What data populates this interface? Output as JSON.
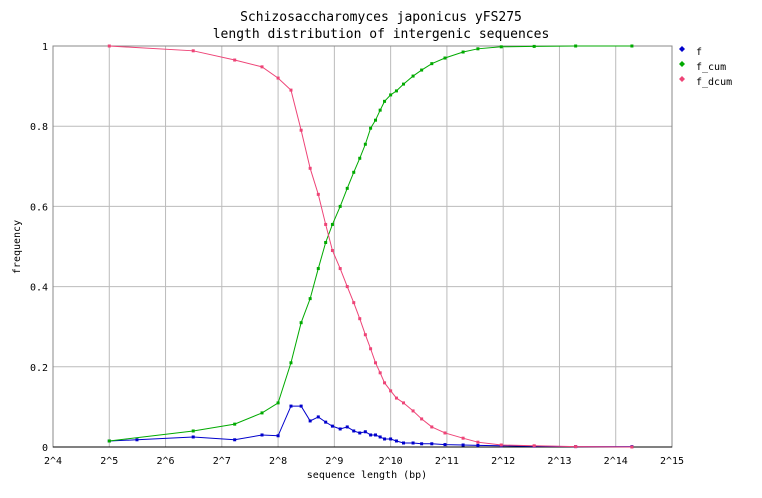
{
  "chart_data": {
    "type": "line",
    "title": "Schizosaccharomyces japonicus yFS275",
    "subtitle": "length distribution of intergenic sequences",
    "xlabel": "sequence length (bp)",
    "ylabel": "frequency",
    "x_scale": "log2",
    "xlim": [
      16,
      32768
    ],
    "ylim": [
      0,
      1
    ],
    "x_ticks": [
      16,
      32,
      64,
      128,
      256,
      512,
      1024,
      2048,
      4096,
      8192,
      16384,
      32768
    ],
    "x_tick_labels": [
      "2^4",
      "2^5",
      "2^6",
      "2^7",
      "2^8",
      "2^9",
      "2^10",
      "2^11",
      "2^12",
      "2^13",
      "2^14",
      "2^15"
    ],
    "y_ticks": [
      0,
      0.2,
      0.4,
      0.6,
      0.8,
      1
    ],
    "y_tick_labels": [
      "0",
      "0.2",
      "0.4",
      "0.6",
      "0.8",
      "1"
    ],
    "grid": true,
    "legend_position": "right",
    "series": [
      {
        "name": "f",
        "color": "#0000cc",
        "x": [
          32,
          45,
          90,
          150,
          210,
          256,
          300,
          340,
          380,
          420,
          460,
          500,
          550,
          600,
          650,
          700,
          750,
          800,
          850,
          900,
          950,
          1024,
          1100,
          1200,
          1350,
          1500,
          1700,
          2000,
          2500,
          3000,
          4000,
          6000,
          10000,
          20000
        ],
        "y": [
          0.015,
          0.018,
          0.025,
          0.018,
          0.03,
          0.028,
          0.102,
          0.102,
          0.065,
          0.075,
          0.062,
          0.052,
          0.045,
          0.05,
          0.04,
          0.035,
          0.038,
          0.03,
          0.03,
          0.025,
          0.02,
          0.02,
          0.015,
          0.01,
          0.01,
          0.008,
          0.008,
          0.006,
          0.005,
          0.004,
          0.003,
          0.002,
          0.001,
          0.001
        ]
      },
      {
        "name": "f_cum",
        "color": "#00aa00",
        "x": [
          32,
          90,
          150,
          210,
          256,
          300,
          340,
          380,
          420,
          460,
          500,
          550,
          600,
          650,
          700,
          750,
          800,
          850,
          900,
          950,
          1024,
          1100,
          1200,
          1350,
          1500,
          1700,
          2000,
          2500,
          3000,
          4000,
          6000,
          10000,
          20000
        ],
        "y": [
          0.015,
          0.04,
          0.057,
          0.085,
          0.11,
          0.21,
          0.31,
          0.37,
          0.445,
          0.51,
          0.555,
          0.6,
          0.645,
          0.685,
          0.72,
          0.755,
          0.795,
          0.815,
          0.84,
          0.862,
          0.878,
          0.888,
          0.905,
          0.925,
          0.94,
          0.956,
          0.97,
          0.985,
          0.993,
          0.998,
          0.999,
          1.0,
          1.0
        ]
      },
      {
        "name": "f_dcum",
        "color": "#ee4477",
        "x": [
          32,
          90,
          150,
          210,
          256,
          300,
          340,
          380,
          420,
          460,
          500,
          550,
          600,
          650,
          700,
          750,
          800,
          850,
          900,
          950,
          1024,
          1100,
          1200,
          1350,
          1500,
          1700,
          2000,
          2500,
          3000,
          4000,
          6000,
          10000,
          20000
        ],
        "y": [
          1.0,
          0.988,
          0.965,
          0.948,
          0.92,
          0.89,
          0.79,
          0.695,
          0.63,
          0.555,
          0.49,
          0.445,
          0.4,
          0.36,
          0.32,
          0.28,
          0.245,
          0.21,
          0.185,
          0.16,
          0.14,
          0.122,
          0.11,
          0.09,
          0.07,
          0.05,
          0.035,
          0.022,
          0.012,
          0.005,
          0.003,
          0.001,
          0.0
        ]
      }
    ]
  }
}
